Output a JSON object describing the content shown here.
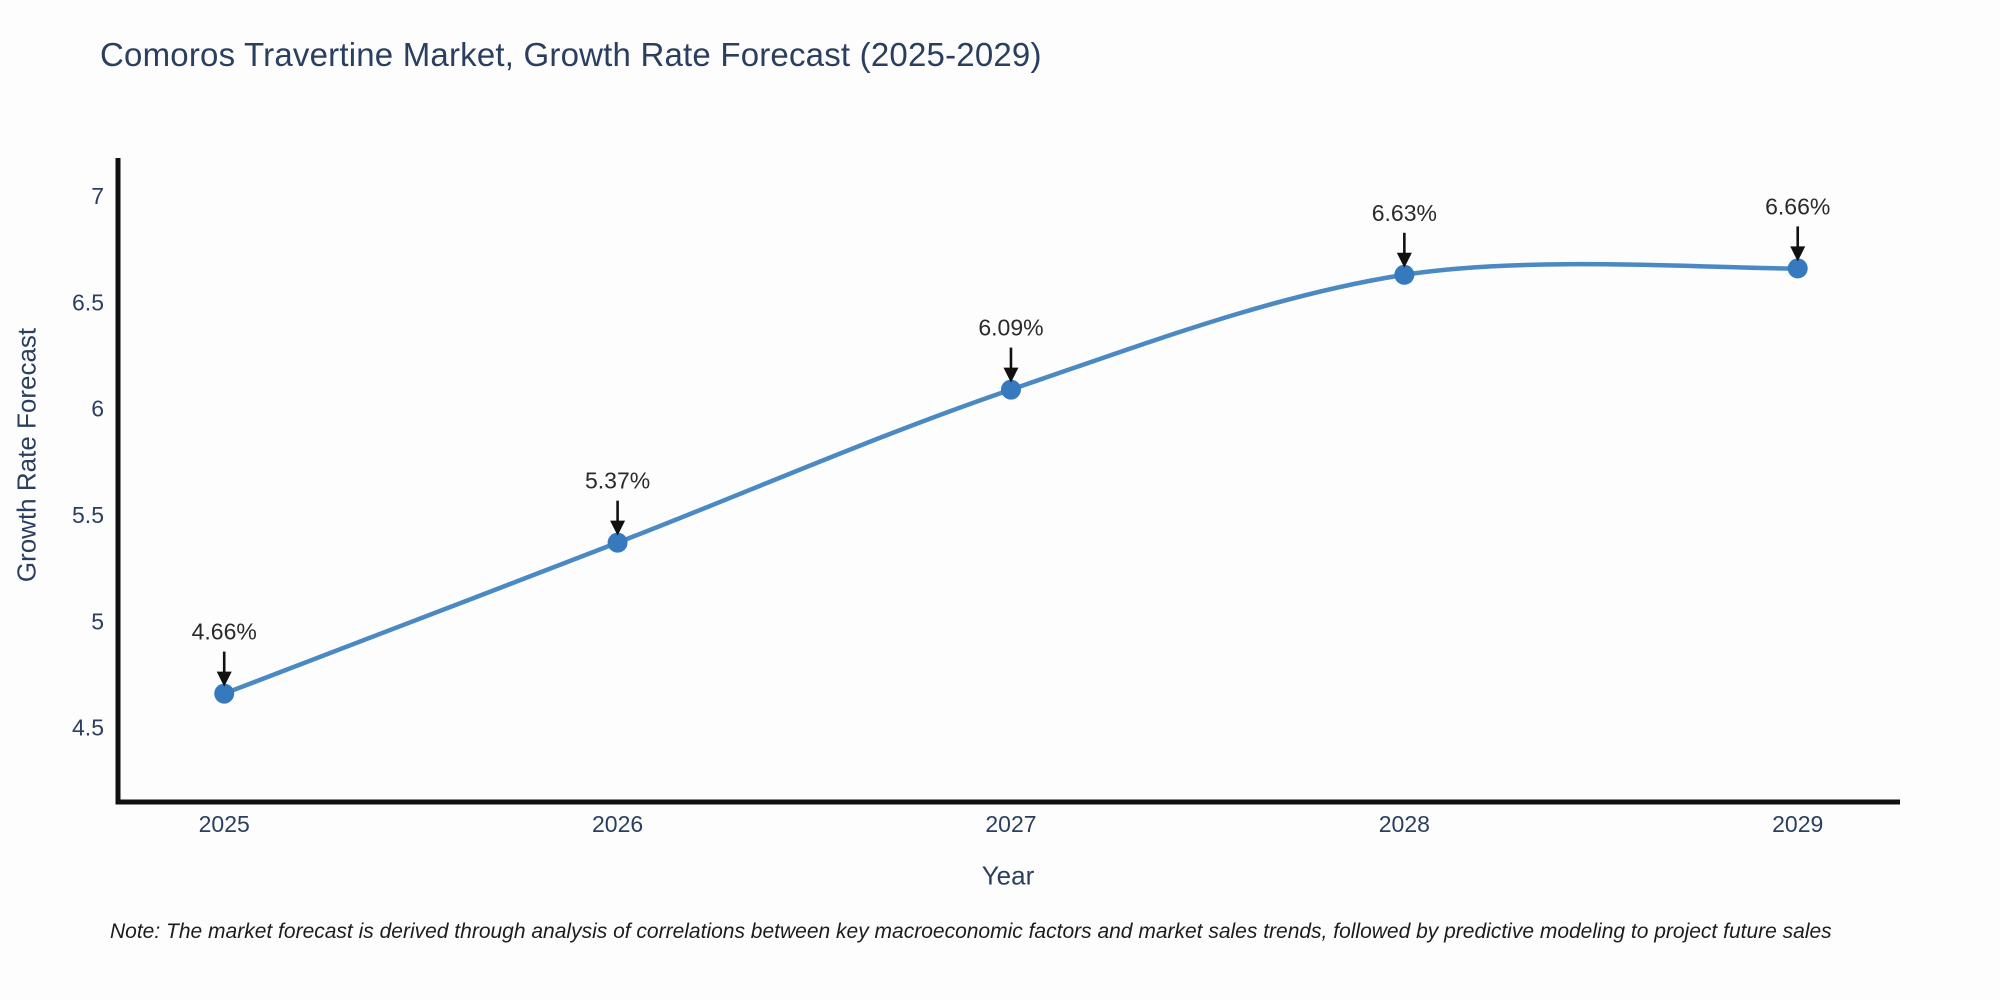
{
  "page": {
    "footnote": "Note: The market forecast is derived through analysis of correlations between key macroeconomic factors and market sales trends, followed by predictive modeling to project future sales"
  },
  "chart_data": {
    "type": "line",
    "title": "Comoros Travertine Market, Growth Rate Forecast (2025-2029)",
    "xlabel": "Year",
    "ylabel": "Growth Rate Forecast",
    "categories": [
      "2025",
      "2026",
      "2027",
      "2028",
      "2029"
    ],
    "x": [
      2025,
      2026,
      2027,
      2028,
      2029
    ],
    "series": [
      {
        "name": "Growth Rate Forecast",
        "values": [
          4.66,
          5.37,
          6.09,
          6.63,
          6.66
        ]
      }
    ],
    "point_labels": [
      "4.66%",
      "5.37%",
      "6.09%",
      "6.63%",
      "6.66%"
    ],
    "yticks": [
      "4.5",
      "5",
      "5.5",
      "6",
      "6.5",
      "7"
    ],
    "ytick_values": [
      4.5,
      5,
      5.5,
      6,
      6.5,
      7
    ],
    "ylim": [
      4.15,
      7.17
    ],
    "xlim": [
      2024.73,
      2029.26
    ],
    "grid": false,
    "legend_position": "none",
    "line_shape": "spline",
    "annotation_style": "value-label-with-down-arrow",
    "colors": {
      "line": "#4a89c2",
      "marker": "#3779bd",
      "axis": "#111111",
      "tick_label": "#2a3f5f",
      "axis_title": "#2a3f5f",
      "annotation_text": "#2a2a2a",
      "annotation_arrow": "#111111",
      "background": "#fdfdfd"
    }
  }
}
